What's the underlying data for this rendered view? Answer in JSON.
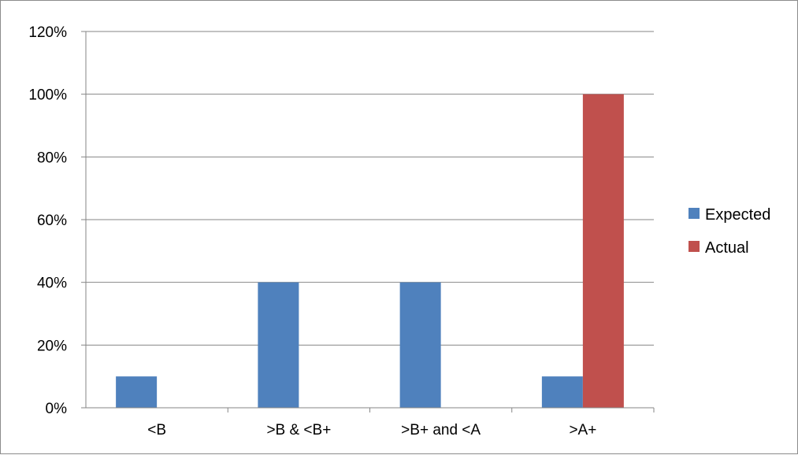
{
  "chart_data": {
    "type": "bar",
    "categories": [
      "<B",
      ">B & <B+",
      ">B+ and <A",
      ">A+"
    ],
    "series": [
      {
        "name": "Expected",
        "values": [
          10,
          40,
          40,
          10
        ],
        "color": "#4F81BD"
      },
      {
        "name": "Actual",
        "values": [
          0,
          0,
          0,
          100
        ],
        "color": "#C0504D"
      }
    ],
    "title": "",
    "xlabel": "",
    "ylabel": "",
    "ylim": [
      0,
      120
    ],
    "ytick_step": 20,
    "ytick_labels": [
      "0%",
      "20%",
      "40%",
      "60%",
      "80%",
      "100%",
      "120%"
    ],
    "grid": true,
    "legend_position": "right"
  }
}
